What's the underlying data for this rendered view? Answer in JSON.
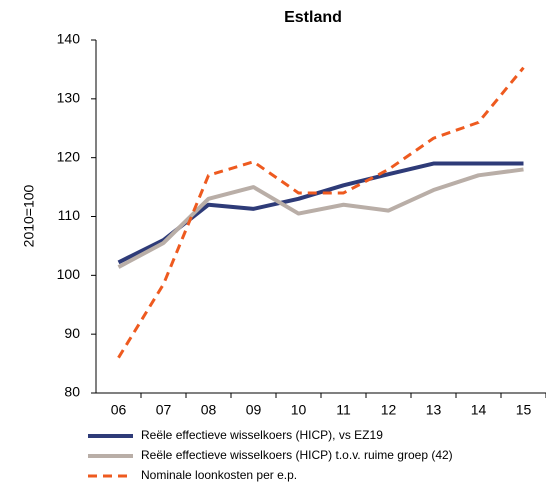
{
  "chart_data": {
    "type": "line",
    "title": "Estland",
    "y_label": "2010=100",
    "categories": [
      "06",
      "07",
      "08",
      "09",
      "10",
      "11",
      "12",
      "13",
      "14",
      "15"
    ],
    "series": [
      {
        "name": "Reële effectieve wisselkoers (HICP), vs EZ19",
        "color": "#2e3b78",
        "dash": false,
        "values": [
          102.2,
          106,
          112,
          111.3,
          113,
          115.3,
          117.2,
          119,
          119,
          119
        ]
      },
      {
        "name": "Reële effectieve wisselkoers (HICP) t.o.v. ruime groep (42)",
        "color": "#b9aea7",
        "dash": false,
        "values": [
          101.4,
          105.5,
          113,
          115,
          110.5,
          112,
          111,
          114.5,
          117,
          118
        ]
      },
      {
        "name": "Nominale loonkosten per e.p.",
        "color": "#ee5a1f",
        "dash": true,
        "values": [
          86,
          98.5,
          117,
          119.3,
          114,
          114,
          118,
          123.3,
          126,
          135.3
        ]
      }
    ],
    "ylim": [
      80,
      140
    ],
    "yticks": [
      80,
      90,
      100,
      110,
      120,
      130,
      140
    ],
    "grid": false
  }
}
